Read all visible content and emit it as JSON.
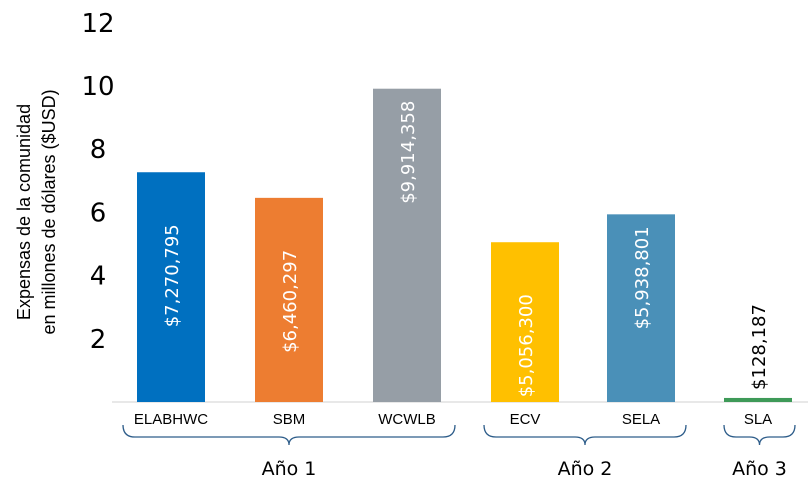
{
  "chart_data": {
    "type": "bar",
    "ylabel_lines": [
      "Expensas de la comunidad",
      "en millones de dólares ($USD)"
    ],
    "ylim": [
      0,
      12
    ],
    "yticks": [
      2,
      4,
      6,
      8,
      10,
      12
    ],
    "grid": false,
    "categories": [
      "ELABHWC",
      "SBM",
      "WCWLB",
      "ECV",
      "SELA",
      "SLA"
    ],
    "values": [
      7.270795,
      6.460297,
      9.914358,
      5.0563,
      5.938801,
      0.128187
    ],
    "data_labels": [
      "$7,270,795",
      "$6,460,297",
      "$9,914,358",
      "$5,056,300",
      "$5,938,801",
      "$128,187"
    ],
    "colors": [
      "#0070c0",
      "#ed7d31",
      "#969ea6",
      "#ffc000",
      "#4a90b8",
      "#3e9a58"
    ],
    "label_colors": [
      "#ffffff",
      "#ffffff",
      "#ffffff",
      "#ffffff",
      "#ffffff",
      "#000000"
    ],
    "groups": [
      {
        "label": "Año 1",
        "categories": [
          "ELABHWC",
          "SBM",
          "WCWLB"
        ]
      },
      {
        "label": "Año 2",
        "categories": [
          "ECV",
          "SELA"
        ]
      },
      {
        "label": "Año 3",
        "categories": [
          "SLA"
        ]
      }
    ]
  }
}
